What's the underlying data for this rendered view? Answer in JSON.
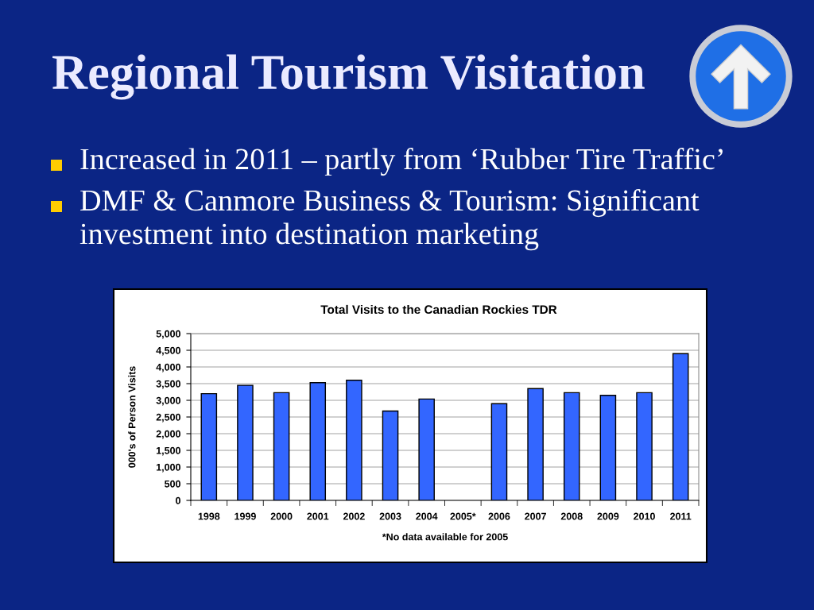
{
  "chart_data": {
    "type": "bar",
    "title": "Regional Tourism Visitation",
    "subtitle": "Total Visits to the Canadian Rockies TDR",
    "ylabel": "000's of Person Visits",
    "categories": [
      "1998",
      "1999",
      "2000",
      "2001",
      "2002",
      "2003",
      "2004",
      "2005*",
      "2006",
      "2007",
      "2008",
      "2009",
      "2010",
      "2011"
    ],
    "values": [
      3200,
      3450,
      3230,
      3530,
      3600,
      2680,
      3040,
      null,
      2900,
      3350,
      3230,
      3150,
      3230,
      4400
    ],
    "color": "#3366ff",
    "ylim": [
      0,
      5000
    ],
    "yticks": [
      0,
      500,
      {
        "value": 1000,
        "label": "1,000"
      },
      {
        "value": 1500,
        "label": "1,500"
      },
      {
        "value": 2000,
        "label": "2,000"
      },
      {
        "value": 2500,
        "label": "2,500"
      },
      {
        "value": 3000,
        "label": "3,000"
      },
      {
        "value": 3500,
        "label": "3,500"
      },
      {
        "value": 4000,
        "label": "4,000"
      },
      {
        "value": 4500,
        "label": "4,500"
      },
      {
        "value": 5000,
        "label": "5,000"
      }
    ],
    "grid": "y",
    "annotations": [
      "Increased in 2011 – partly from ‘Rubber Tire Traffic’",
      "DMF & Canmore Business & Tourism: Significant investment into destination marketing",
      "*No data available for 2005"
    ]
  }
}
